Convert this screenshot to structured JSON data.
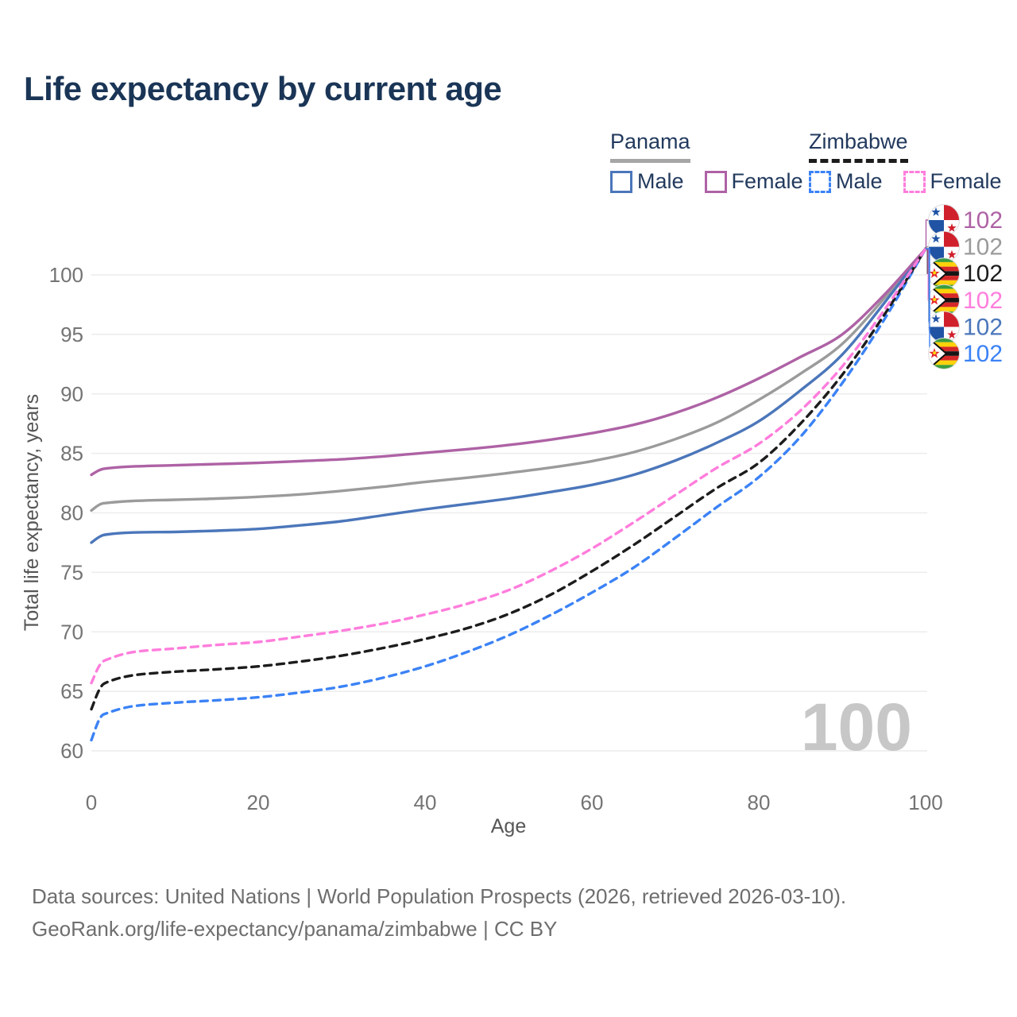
{
  "title": "Life expectancy by current age",
  "watermark": "100",
  "legend": {
    "groups": [
      {
        "name": "Panama",
        "line_style": "solid",
        "underline_color": "#a6a6a6",
        "items": [
          {
            "label": "Male",
            "color": "#4b76ba"
          },
          {
            "label": "Female",
            "color": "#ae62a5"
          }
        ]
      },
      {
        "name": "Zimbabwe",
        "line_style": "dashed",
        "underline_color": "#1c1c1c",
        "items": [
          {
            "label": "Male",
            "color": "#3b82f6"
          },
          {
            "label": "Female",
            "color": "#ff7ddc"
          }
        ]
      }
    ]
  },
  "chart_data": {
    "type": "line",
    "title": "Life expectancy by current age",
    "xlabel": "Age",
    "ylabel": "Total life expectancy, years",
    "xlim": [
      0,
      100
    ],
    "ylim": [
      58.5,
      103
    ],
    "xticks": [
      0,
      20,
      40,
      60,
      80,
      100
    ],
    "yticks": [
      60,
      65,
      70,
      75,
      80,
      85,
      90,
      95,
      100
    ],
    "grid": "horizontal-only",
    "legend_position": "top-right",
    "x": [
      0,
      1,
      2,
      5,
      10,
      15,
      20,
      25,
      30,
      35,
      40,
      45,
      50,
      55,
      60,
      65,
      70,
      75,
      80,
      85,
      90,
      95,
      100
    ],
    "series": [
      {
        "name": "Panama",
        "group": "Panama",
        "dash": false,
        "color": "#9b9b9b",
        "values": [
          80.2,
          80.7,
          80.85,
          81.0,
          81.1,
          81.2,
          81.35,
          81.55,
          81.85,
          82.2,
          82.6,
          82.95,
          83.35,
          83.8,
          84.35,
          85.1,
          86.2,
          87.6,
          89.5,
          91.7,
          94.2,
          98.0,
          102.2
        ]
      },
      {
        "name": "Panama Male",
        "group": "Panama",
        "dash": false,
        "color": "#4b76ba",
        "values": [
          77.5,
          78.0,
          78.2,
          78.35,
          78.4,
          78.5,
          78.65,
          78.95,
          79.3,
          79.8,
          80.3,
          80.75,
          81.2,
          81.75,
          82.35,
          83.2,
          84.4,
          85.9,
          87.7,
          90.3,
          93.3,
          97.6,
          102.2
        ]
      },
      {
        "name": "Panama Female",
        "group": "Panama",
        "dash": false,
        "color": "#ae62a5",
        "values": [
          83.2,
          83.6,
          83.75,
          83.9,
          84.0,
          84.1,
          84.2,
          84.35,
          84.5,
          84.75,
          85.05,
          85.35,
          85.7,
          86.15,
          86.7,
          87.4,
          88.4,
          89.7,
          91.3,
          93.1,
          95.0,
          98.3,
          102.2
        ]
      },
      {
        "name": "Zimbabwe Male",
        "group": "Zimbabwe",
        "dash": true,
        "color": "#3b82f6",
        "values": [
          60.9,
          62.7,
          63.2,
          63.75,
          64.05,
          64.25,
          64.5,
          64.9,
          65.4,
          66.15,
          67.1,
          68.3,
          69.7,
          71.4,
          73.3,
          75.4,
          77.9,
          80.5,
          83.0,
          86.4,
          90.9,
          96.2,
          102.2
        ]
      },
      {
        "name": "Zimbabwe",
        "group": "Zimbabwe",
        "dash": true,
        "color": "#1c1c1c",
        "values": [
          63.5,
          65.2,
          65.8,
          66.35,
          66.65,
          66.85,
          67.1,
          67.5,
          68.0,
          68.65,
          69.4,
          70.3,
          71.5,
          73.1,
          75.1,
          77.3,
          79.7,
          82.1,
          84.2,
          87.5,
          91.6,
          96.6,
          102.2
        ]
      },
      {
        "name": "Zimbabwe Female",
        "group": "Zimbabwe",
        "dash": true,
        "color": "#ff7ddc",
        "values": [
          65.7,
          67.2,
          67.7,
          68.3,
          68.6,
          68.9,
          69.15,
          69.6,
          70.1,
          70.7,
          71.45,
          72.35,
          73.5,
          75.1,
          77.0,
          79.2,
          81.5,
          83.8,
          85.8,
          88.6,
          92.3,
          97.0,
          102.2
        ]
      }
    ],
    "end_labels": [
      {
        "flag": "panama",
        "series": "Panama Female",
        "value": "102",
        "color": "#ae62a5"
      },
      {
        "flag": "panama",
        "series": "Panama",
        "value": "102",
        "color": "#9b9b9b"
      },
      {
        "flag": "zimbabwe",
        "series": "Zimbabwe",
        "value": "102",
        "color": "#1c1c1c"
      },
      {
        "flag": "zimbabwe",
        "series": "Zimbabwe Female",
        "value": "102",
        "color": "#ff7ddc"
      },
      {
        "flag": "panama",
        "series": "Panama Male",
        "value": "102",
        "color": "#4b76ba"
      },
      {
        "flag": "zimbabwe",
        "series": "Zimbabwe Male",
        "value": "102",
        "color": "#3b82f6"
      }
    ]
  },
  "footer": {
    "line1": "Data sources: United Nations | World Population Prospects (2026, retrieved 2026-03-10).",
    "line2": "GeoRank.org/life-expectancy/panama/zimbabwe | CC BY"
  }
}
